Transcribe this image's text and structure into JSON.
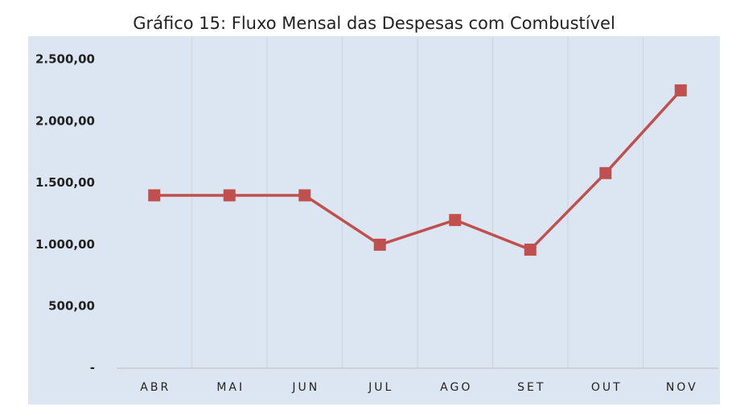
{
  "chart_data": {
    "type": "line",
    "title": "Gráfico 15: Fluxo Mensal das Despesas com Combustível",
    "categories": [
      "ABR",
      "MAI",
      "JUN",
      "JUL",
      "AGO",
      "SET",
      "OUT",
      "NOV"
    ],
    "series": [
      {
        "name": "Despesas com Combustível",
        "color": "#c0504d",
        "values": [
          1400,
          1400,
          1400,
          1000,
          1200,
          960,
          1580,
          2250
        ]
      }
    ],
    "ylim": [
      0,
      2500
    ],
    "yticks": [
      {
        "value": 0,
        "label": "-"
      },
      {
        "value": 500,
        "label": "500,00"
      },
      {
        "value": 1000,
        "label": "1.000,00"
      },
      {
        "value": 1500,
        "label": "1.500,00"
      },
      {
        "value": 2000,
        "label": "2.000,00"
      },
      {
        "value": 2500,
        "label": "2.500,00"
      }
    ],
    "grid": false
  }
}
